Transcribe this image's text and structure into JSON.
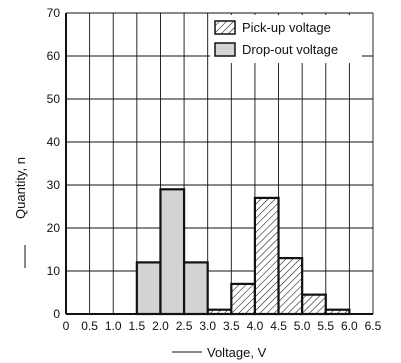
{
  "chart_data": {
    "type": "bar",
    "title": "",
    "xlabel": "Voltage, V",
    "ylabel": "Quantity, n",
    "xlim": [
      0,
      6.5
    ],
    "ylim": [
      0,
      70
    ],
    "x_ticks": [
      "0",
      "0.5",
      "1.0",
      "1.5",
      "2.0",
      "2.5",
      "3.0",
      "3.5",
      "4.0",
      "4.5",
      "5.0",
      "5.5",
      "6.0",
      "6.5"
    ],
    "y_ticks": [
      "0",
      "10",
      "20",
      "30",
      "40",
      "50",
      "60",
      "70"
    ],
    "grid": true,
    "legend_position": "top-right",
    "bin_width": 0.5,
    "series": [
      {
        "name": "Pick-up voltage",
        "fill": "hatched",
        "bins": [
          {
            "start": 3.0,
            "value": 1
          },
          {
            "start": 3.5,
            "value": 7
          },
          {
            "start": 4.0,
            "value": 27
          },
          {
            "start": 4.5,
            "value": 13
          },
          {
            "start": 5.0,
            "value": 4.5
          },
          {
            "start": 5.5,
            "value": 1
          }
        ]
      },
      {
        "name": "Drop-out voltage",
        "fill": "#d3d3d3",
        "bins": [
          {
            "start": 1.5,
            "value": 12
          },
          {
            "start": 2.0,
            "value": 29
          },
          {
            "start": 2.5,
            "value": 12
          }
        ]
      }
    ]
  }
}
